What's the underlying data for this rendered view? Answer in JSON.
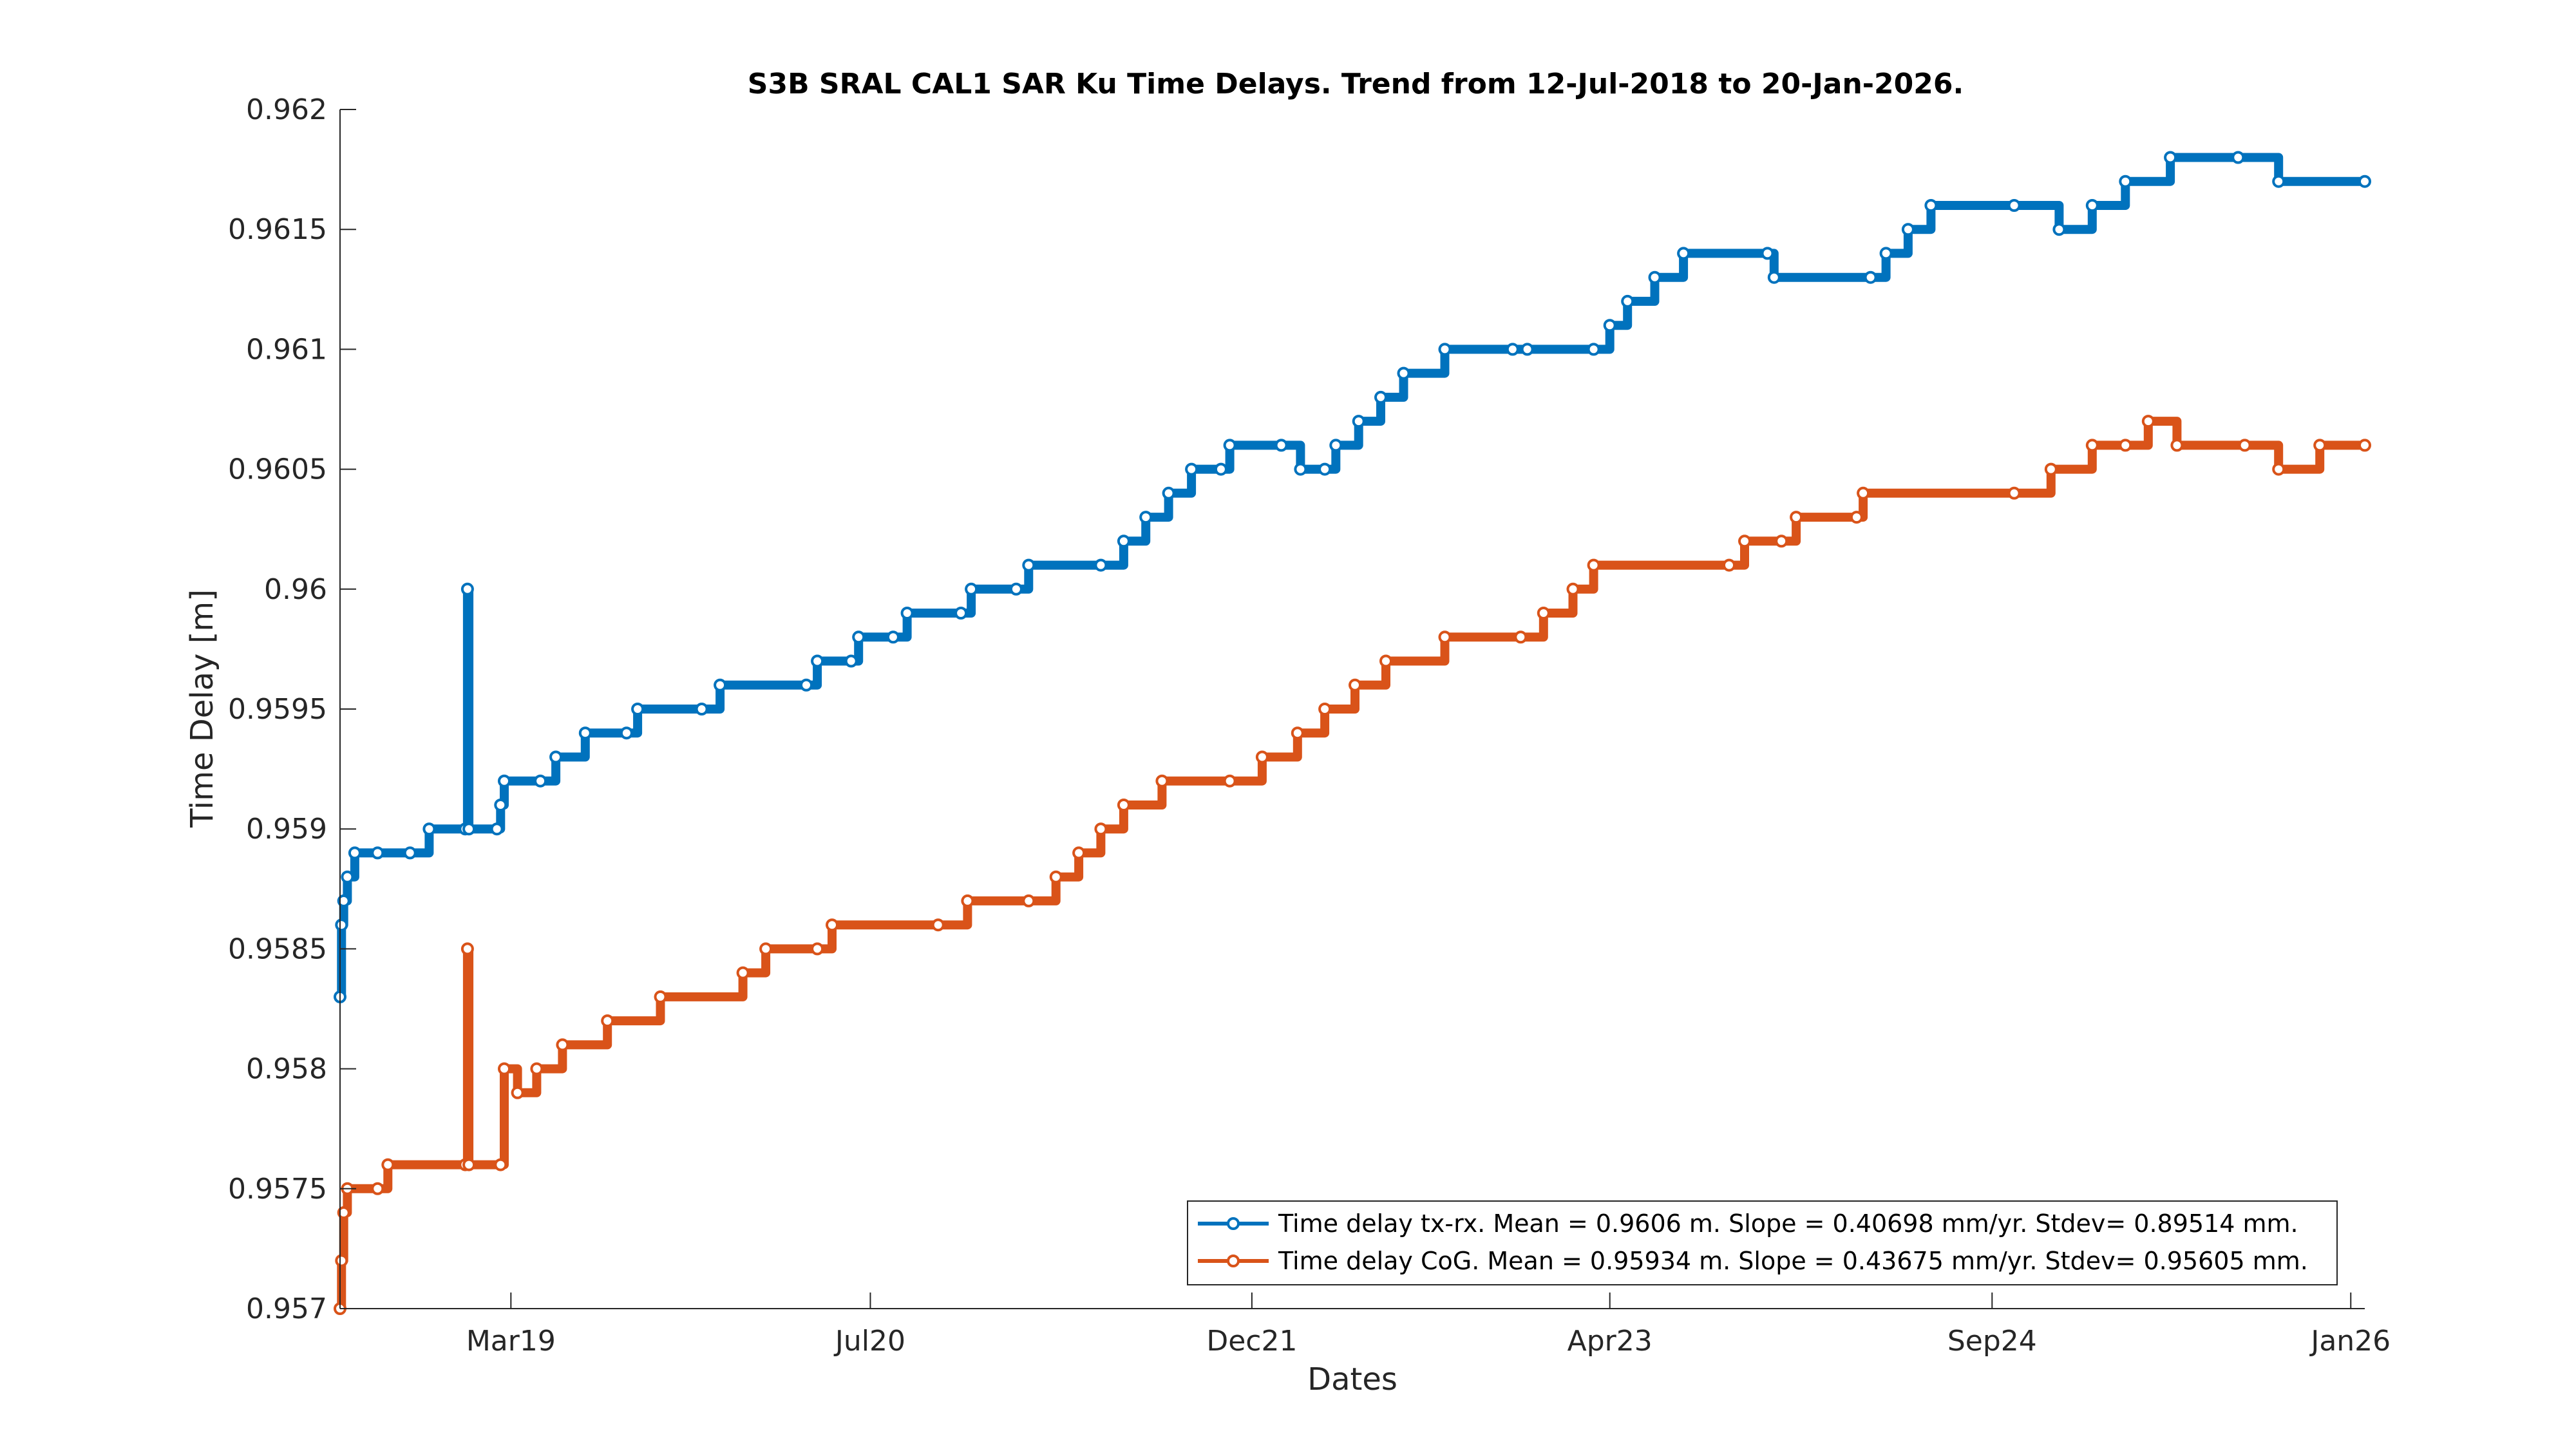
{
  "chart_data": {
    "type": "line",
    "title": "S3B SRAL CAL1 SAR Ku Time Delays. Trend from 12-Jul-2018 to 20-Jan-2026.",
    "xlabel": "Dates",
    "ylabel": "Time Delay [m]",
    "x_axis_kind": "date",
    "xlim": [
      "2018-07-12",
      "2026-01-20"
    ],
    "x_ticks": [
      {
        "date": "2019-03-01",
        "label": "Mar19"
      },
      {
        "date": "2020-07-01",
        "label": "Jul20"
      },
      {
        "date": "2021-12-01",
        "label": "Dec21"
      },
      {
        "date": "2023-04-01",
        "label": "Apr23"
      },
      {
        "date": "2024-09-01",
        "label": "Sep24"
      },
      {
        "date": "2026-01-01",
        "label": "Jan26"
      }
    ],
    "ylim": [
      0.957,
      0.962
    ],
    "y_ticks": [
      {
        "value": 0.957,
        "label": "0.957"
      },
      {
        "value": 0.9575,
        "label": "0.9575"
      },
      {
        "value": 0.958,
        "label": "0.958"
      },
      {
        "value": 0.9585,
        "label": "0.9585"
      },
      {
        "value": 0.959,
        "label": "0.959"
      },
      {
        "value": 0.9595,
        "label": "0.9595"
      },
      {
        "value": 0.96,
        "label": "0.96"
      },
      {
        "value": 0.9605,
        "label": "0.9605"
      },
      {
        "value": 0.961,
        "label": "0.961"
      },
      {
        "value": 0.9615,
        "label": "0.9615"
      },
      {
        "value": 0.962,
        "label": "0.962"
      }
    ],
    "grid": false,
    "legend_position": "bottom-right",
    "series": [
      {
        "name": "Time delay tx-rx. Mean = 0.9606 m. Slope = 0.40698 mm/yr. Stdev= 0.89514 mm.",
        "color": "#0072BD",
        "marker": "circle",
        "points": [
          [
            "2018-07-12",
            0.9583
          ],
          [
            "2018-07-14",
            0.9586
          ],
          [
            "2018-07-17",
            0.9587
          ],
          [
            "2018-07-22",
            0.9588
          ],
          [
            "2018-08-01",
            0.9589
          ],
          [
            "2018-09-01",
            0.9589
          ],
          [
            "2018-10-15",
            0.9589
          ],
          [
            "2018-11-10",
            0.959
          ],
          [
            "2018-12-29",
            0.959
          ],
          [
            "2019-01-01",
            0.96
          ],
          [
            "2019-01-03",
            0.959
          ],
          [
            "2019-02-10",
            0.959
          ],
          [
            "2019-02-15",
            0.9591
          ],
          [
            "2019-02-20",
            0.9592
          ],
          [
            "2019-04-10",
            0.9592
          ],
          [
            "2019-05-01",
            0.9593
          ],
          [
            "2019-06-10",
            0.9594
          ],
          [
            "2019-08-05",
            0.9594
          ],
          [
            "2019-08-20",
            0.9595
          ],
          [
            "2019-11-15",
            0.9595
          ],
          [
            "2019-12-10",
            0.9596
          ],
          [
            "2020-04-05",
            0.9596
          ],
          [
            "2020-04-20",
            0.9597
          ],
          [
            "2020-06-05",
            0.9597
          ],
          [
            "2020-06-15",
            0.9598
          ],
          [
            "2020-08-01",
            0.9598
          ],
          [
            "2020-08-20",
            0.9599
          ],
          [
            "2020-11-01",
            0.9599
          ],
          [
            "2020-11-15",
            0.96
          ],
          [
            "2021-01-15",
            0.96
          ],
          [
            "2021-02-01",
            0.9601
          ],
          [
            "2021-05-10",
            0.9601
          ],
          [
            "2021-06-10",
            0.9602
          ],
          [
            "2021-07-10",
            0.9603
          ],
          [
            "2021-08-10",
            0.9604
          ],
          [
            "2021-09-10",
            0.9605
          ],
          [
            "2021-10-20",
            0.9605
          ],
          [
            "2021-11-01",
            0.9606
          ],
          [
            "2022-01-10",
            0.9606
          ],
          [
            "2022-02-05",
            0.9605
          ],
          [
            "2022-03-10",
            0.9605
          ],
          [
            "2022-03-25",
            0.9606
          ],
          [
            "2022-04-25",
            0.9607
          ],
          [
            "2022-05-25",
            0.9608
          ],
          [
            "2022-06-25",
            0.9609
          ],
          [
            "2022-08-20",
            0.961
          ],
          [
            "2022-11-20",
            0.961
          ],
          [
            "2022-12-10",
            0.961
          ],
          [
            "2023-03-10",
            0.961
          ],
          [
            "2023-04-01",
            0.9611
          ],
          [
            "2023-04-25",
            0.9612
          ],
          [
            "2023-06-01",
            0.9613
          ],
          [
            "2023-07-10",
            0.9614
          ],
          [
            "2023-11-01",
            0.9614
          ],
          [
            "2023-11-10",
            0.9613
          ],
          [
            "2024-03-20",
            0.9613
          ],
          [
            "2024-04-10",
            0.9614
          ],
          [
            "2024-05-10",
            0.9615
          ],
          [
            "2024-06-10",
            0.9616
          ],
          [
            "2024-10-01",
            0.9616
          ],
          [
            "2024-12-01",
            0.9615
          ],
          [
            "2025-01-15",
            0.9616
          ],
          [
            "2025-03-01",
            0.9617
          ],
          [
            "2025-05-01",
            0.9618
          ],
          [
            "2025-08-01",
            0.9618
          ],
          [
            "2025-09-25",
            0.9617
          ],
          [
            "2026-01-20",
            0.9617
          ]
        ]
      },
      {
        "name": "Time delay CoG. Mean = 0.95934 m. Slope = 0.43675 mm/yr. Stdev= 0.95605 mm.",
        "color": "#D95319",
        "marker": "circle",
        "points": [
          [
            "2018-07-12",
            0.957
          ],
          [
            "2018-07-14",
            0.9572
          ],
          [
            "2018-07-17",
            0.9574
          ],
          [
            "2018-07-22",
            0.9575
          ],
          [
            "2018-09-01",
            0.9575
          ],
          [
            "2018-09-15",
            0.9576
          ],
          [
            "2018-12-29",
            0.9576
          ],
          [
            "2019-01-01",
            0.9585
          ],
          [
            "2019-01-03",
            0.9576
          ],
          [
            "2019-02-15",
            0.9576
          ],
          [
            "2019-02-20",
            0.958
          ],
          [
            "2019-03-10",
            0.9579
          ],
          [
            "2019-04-05",
            0.958
          ],
          [
            "2019-05-10",
            0.9581
          ],
          [
            "2019-07-10",
            0.9582
          ],
          [
            "2019-09-20",
            0.9583
          ],
          [
            "2020-01-10",
            0.9584
          ],
          [
            "2020-02-10",
            0.9585
          ],
          [
            "2020-04-20",
            0.9585
          ],
          [
            "2020-05-10",
            0.9586
          ],
          [
            "2020-10-01",
            0.9586
          ],
          [
            "2020-11-10",
            0.9587
          ],
          [
            "2021-02-01",
            0.9587
          ],
          [
            "2021-03-10",
            0.9588
          ],
          [
            "2021-04-10",
            0.9589
          ],
          [
            "2021-05-10",
            0.959
          ],
          [
            "2021-06-10",
            0.9591
          ],
          [
            "2021-08-01",
            0.9592
          ],
          [
            "2021-11-01",
            0.9592
          ],
          [
            "2021-12-15",
            0.9593
          ],
          [
            "2022-02-01",
            0.9594
          ],
          [
            "2022-03-10",
            0.9595
          ],
          [
            "2022-04-20",
            0.9596
          ],
          [
            "2022-06-01",
            0.9597
          ],
          [
            "2022-08-20",
            0.9598
          ],
          [
            "2022-12-01",
            0.9598
          ],
          [
            "2023-01-01",
            0.9599
          ],
          [
            "2023-02-10",
            0.96
          ],
          [
            "2023-03-10",
            0.9601
          ],
          [
            "2023-09-10",
            0.9601
          ],
          [
            "2023-10-01",
            0.9602
          ],
          [
            "2023-11-20",
            0.9602
          ],
          [
            "2023-12-10",
            0.9603
          ],
          [
            "2024-03-01",
            0.9603
          ],
          [
            "2024-03-10",
            0.9604
          ],
          [
            "2024-10-01",
            0.9604
          ],
          [
            "2024-11-20",
            0.9605
          ],
          [
            "2025-01-15",
            0.9606
          ],
          [
            "2025-03-01",
            0.9606
          ],
          [
            "2025-04-01",
            0.9607
          ],
          [
            "2025-05-10",
            0.9606
          ],
          [
            "2025-08-10",
            0.9606
          ],
          [
            "2025-09-25",
            0.9605
          ],
          [
            "2025-11-20",
            0.9606
          ],
          [
            "2026-01-20",
            0.9606
          ]
        ]
      }
    ]
  }
}
